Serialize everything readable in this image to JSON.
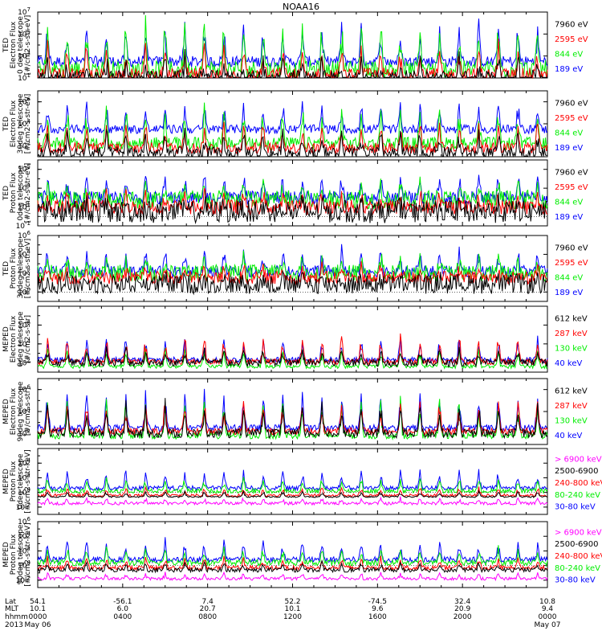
{
  "title": "NOAA16",
  "colors": {
    "blue": "#0000ff",
    "red": "#ff0000",
    "green": "#00ee00",
    "black": "#000000",
    "magenta": "#ff00ff"
  },
  "chart_data": [
    {
      "type": "line",
      "ylabel": [
        "TED",
        "Electron Flux",
        "0 deg telescope",
        "[#/cm2-s-str-eV]"
      ],
      "ytick_exps": [
        1,
        3,
        5,
        7
      ],
      "ylim": [
        1,
        7
      ],
      "baseline": 2,
      "legend": [
        {
          "text": "7960 eV",
          "color": "black"
        },
        {
          "text": "2595 eV",
          "color": "red"
        },
        {
          "text": "844 eV",
          "color": "green"
        },
        {
          "text": "189 eV",
          "color": "blue"
        }
      ],
      "series": [
        {
          "name": "189 eV",
          "color": "blue",
          "level": 2.5,
          "noise": 0.5,
          "spike": 3.5
        },
        {
          "name": "844 eV",
          "color": "green",
          "level": 1.8,
          "noise": 0.8,
          "spike": 4.5
        },
        {
          "name": "2595 eV",
          "color": "red",
          "level": 1.2,
          "noise": 0.7,
          "spike": 3.0
        },
        {
          "name": "7960 eV",
          "color": "black",
          "level": 0.8,
          "noise": 0.9,
          "spike": 2.2
        }
      ]
    },
    {
      "type": "line",
      "ylabel": [
        "TED",
        "Electron Flux",
        "30deg telescope",
        "[#/cm2-s-str-eV]"
      ],
      "ytick_exps": [
        2,
        4,
        6
      ],
      "ylim": [
        1,
        7
      ],
      "baseline": 2,
      "legend": [
        {
          "text": "7960 eV",
          "color": "black"
        },
        {
          "text": "2595 eV",
          "color": "red"
        },
        {
          "text": "844 eV",
          "color": "green"
        },
        {
          "text": "189 eV",
          "color": "blue"
        }
      ],
      "series": [
        {
          "name": "189 eV",
          "color": "blue",
          "level": 3.5,
          "noise": 0.4,
          "spike": 2.5
        },
        {
          "name": "844 eV",
          "color": "green",
          "level": 2.2,
          "noise": 0.6,
          "spike": 3.5
        },
        {
          "name": "2595 eV",
          "color": "red",
          "level": 1.8,
          "noise": 0.5,
          "spike": 2.5
        },
        {
          "name": "7960 eV",
          "color": "black",
          "level": 1.3,
          "noise": 0.6,
          "spike": 2.0
        }
      ]
    },
    {
      "type": "line",
      "ylabel": [
        "TED",
        "Proton Flux",
        "0deg telescope",
        "[#/cm2-s-str-eV]"
      ],
      "ytick_exps": [
        -1,
        1,
        3,
        5
      ],
      "ylim": [
        -1,
        6
      ],
      "baseline": 2,
      "legend": [
        {
          "text": "7960 eV",
          "color": "black"
        },
        {
          "text": "2595 eV",
          "color": "red"
        },
        {
          "text": "844 eV",
          "color": "green"
        },
        {
          "text": "189 eV",
          "color": "blue"
        }
      ],
      "series": [
        {
          "name": "189 eV",
          "color": "blue",
          "level": 2.0,
          "noise": 0.7,
          "spike": 2.5
        },
        {
          "name": "844 eV",
          "color": "green",
          "level": 1.8,
          "noise": 1.0,
          "spike": 1.8
        },
        {
          "name": "2595 eV",
          "color": "red",
          "level": 1.0,
          "noise": 0.8,
          "spike": 1.5
        },
        {
          "name": "7960 eV",
          "color": "black",
          "level": 0.5,
          "noise": 1.2,
          "spike": 1.0
        }
      ]
    },
    {
      "type": "line",
      "ylabel": [
        "TED",
        "Proton Flux",
        "30deg telescope",
        "[#/cm2-s-str-eV]"
      ],
      "ytick_exps": [
        0,
        2,
        4,
        6
      ],
      "ylim": [
        -1,
        6
      ],
      "baseline": 2,
      "legend": [
        {
          "text": "7960 eV",
          "color": "black"
        },
        {
          "text": "2595 eV",
          "color": "red"
        },
        {
          "text": "844 eV",
          "color": "green"
        },
        {
          "text": "189 eV",
          "color": "blue"
        }
      ],
      "series": [
        {
          "name": "189 eV",
          "color": "blue",
          "level": 2.2,
          "noise": 0.6,
          "spike": 2.5
        },
        {
          "name": "844 eV",
          "color": "green",
          "level": 2.0,
          "noise": 0.9,
          "spike": 1.8
        },
        {
          "name": "2595 eV",
          "color": "red",
          "level": 1.5,
          "noise": 0.7,
          "spike": 1.2
        },
        {
          "name": "7960 eV",
          "color": "black",
          "level": 0.8,
          "noise": 1.0,
          "spike": 0.8
        }
      ]
    },
    {
      "type": "line",
      "ylabel": [
        "MEPED",
        "Electron Flux",
        "0deg telescope",
        "[#/cm2-s-str]"
      ],
      "ytick_exps": [
        2,
        4,
        6
      ],
      "ylim": [
        1,
        8
      ],
      "baseline": 2,
      "legend": [
        {
          "text": "612 keV",
          "color": "black"
        },
        {
          "text": "287 keV",
          "color": "red"
        },
        {
          "text": "130 keV",
          "color": "green"
        },
        {
          "text": "40 keV",
          "color": "blue"
        }
      ],
      "series": [
        {
          "name": "40 keV",
          "color": "blue",
          "level": 2.3,
          "noise": 0.3,
          "spike": 2.5
        },
        {
          "name": "130 keV",
          "color": "green",
          "level": 1.6,
          "noise": 0.2,
          "spike": 2.0
        },
        {
          "name": "287 keV",
          "color": "red",
          "level": 2.1,
          "noise": 0.3,
          "spike": 3.0
        },
        {
          "name": "612 keV",
          "color": "black",
          "level": 2.0,
          "noise": 0.4,
          "spike": 1.5
        }
      ]
    },
    {
      "type": "line",
      "ylabel": [
        "MEPED",
        "Electron Flux",
        "90deg telescope",
        "[#/cm2-s-str]"
      ],
      "ytick_exps": [
        2,
        4,
        6
      ],
      "ylim": [
        1,
        7
      ],
      "baseline": 2,
      "legend": [
        {
          "text": "612 keV",
          "color": "black"
        },
        {
          "text": "287 keV",
          "color": "red"
        },
        {
          "text": "130 keV",
          "color": "green"
        },
        {
          "text": "40 keV",
          "color": "blue"
        }
      ],
      "series": [
        {
          "name": "40 keV",
          "color": "blue",
          "level": 2.5,
          "noise": 0.3,
          "spike": 3.5
        },
        {
          "name": "130 keV",
          "color": "green",
          "level": 1.8,
          "noise": 0.3,
          "spike": 3.5
        },
        {
          "name": "287 keV",
          "color": "red",
          "level": 2.2,
          "noise": 0.3,
          "spike": 3.0
        },
        {
          "name": "612 keV",
          "color": "black",
          "level": 2.0,
          "noise": 0.4,
          "spike": 3.0
        }
      ]
    },
    {
      "type": "line",
      "ylabel": [
        "MEPED",
        "Proton Flux",
        "0deg telescope",
        "[#/cm2-s-str-keV]"
      ],
      "ytick_exps": [
        -2,
        0,
        2,
        4
      ],
      "ylim": [
        -3,
        6
      ],
      "baseline": 2,
      "legend": [
        {
          "text": "> 6900 keV",
          "color": "magenta"
        },
        {
          "text": "2500-6900",
          "color": "black"
        },
        {
          "text": "240-800 keV",
          "color": "red"
        },
        {
          "text": "80-240 keV",
          "color": "green"
        },
        {
          "text": "30-80 keV",
          "color": "blue"
        }
      ],
      "series": [
        {
          "name": "30-80 keV",
          "color": "blue",
          "level": 0.6,
          "noise": 0.3,
          "spike": 2.5
        },
        {
          "name": "80-240 keV",
          "color": "green",
          "level": 0.2,
          "noise": 0.3,
          "spike": 1.8
        },
        {
          "name": "240-800 keV",
          "color": "red",
          "level": -0.4,
          "noise": 0.2,
          "spike": 1.2
        },
        {
          "name": "2500-6900",
          "color": "black",
          "level": -0.6,
          "noise": 0.1,
          "spike": 0.8
        },
        {
          "name": "> 6900 keV",
          "color": "magenta",
          "level": -1.5,
          "noise": 0.2,
          "spike": 0.8
        }
      ]
    },
    {
      "type": "line",
      "ylabel": [
        "MEPED",
        "Proton Flux",
        "90deg telescope",
        "[#/cm2-s-str-keV]"
      ],
      "ytick_exps": [
        -2,
        0,
        2,
        4,
        6
      ],
      "ylim": [
        -3,
        6
      ],
      "baseline": 2,
      "legend": [
        {
          "text": "> 6900 keV",
          "color": "magenta"
        },
        {
          "text": "2500-6900",
          "color": "black"
        },
        {
          "text": "240-800 keV",
          "color": "red"
        },
        {
          "text": "80-240 keV",
          "color": "green"
        },
        {
          "text": "30-80 keV",
          "color": "blue"
        }
      ],
      "series": [
        {
          "name": "30-80 keV",
          "color": "blue",
          "level": 0.8,
          "noise": 0.4,
          "spike": 2.8
        },
        {
          "name": "80-240 keV",
          "color": "green",
          "level": 0.4,
          "noise": 0.4,
          "spike": 2.2
        },
        {
          "name": "240-800 keV",
          "color": "red",
          "level": -0.3,
          "noise": 0.3,
          "spike": 1.5
        },
        {
          "name": "2500-6900",
          "color": "black",
          "level": -0.6,
          "noise": 0.3,
          "spike": 1.0
        },
        {
          "name": "> 6900 keV",
          "color": "magenta",
          "level": -1.8,
          "noise": 0.2,
          "spike": 0.8
        }
      ]
    }
  ],
  "x_axis": {
    "row_labels": [
      "Lat",
      "MLT",
      "hhmm",
      "2013"
    ],
    "ticks": [
      {
        "lat": "54.1",
        "mlt": "10.1",
        "hhmm": "0000",
        "date": "May 06"
      },
      {
        "lat": "-56.1",
        "mlt": "6.0",
        "hhmm": "0400",
        "date": ""
      },
      {
        "lat": "7.4",
        "mlt": "20.7",
        "hhmm": "0800",
        "date": ""
      },
      {
        "lat": "52.2",
        "mlt": "10.1",
        "hhmm": "1200",
        "date": ""
      },
      {
        "lat": "-74.5",
        "mlt": "9.6",
        "hhmm": "1600",
        "date": ""
      },
      {
        "lat": "32.4",
        "mlt": "20.9",
        "hhmm": "2000",
        "date": ""
      },
      {
        "lat": "10.8",
        "mlt": "9.4",
        "hhmm": "0000",
        "date": "May 07"
      }
    ]
  }
}
